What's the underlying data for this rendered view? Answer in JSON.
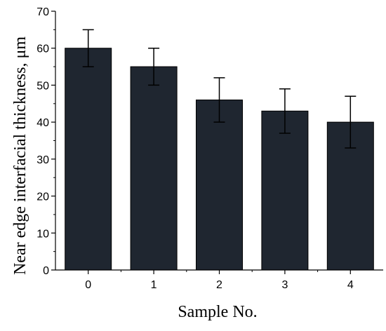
{
  "chart_data": {
    "type": "bar",
    "title": "",
    "xlabel": "Sample No.",
    "ylabel": "Near edge interfacial thickness, μm",
    "categories": [
      "0",
      "1",
      "2",
      "3",
      "4"
    ],
    "values": [
      60,
      55,
      46,
      43,
      40
    ],
    "error_upper": [
      65,
      60,
      52,
      49,
      47
    ],
    "error_lower": [
      55,
      50,
      40,
      37,
      33
    ],
    "ylim": [
      0,
      70
    ],
    "yticks": [
      0,
      10,
      20,
      30,
      40,
      50,
      60,
      70
    ],
    "grid": false,
    "legend": "none",
    "bar_color": "#1f2630",
    "axis_color": "#000000"
  }
}
